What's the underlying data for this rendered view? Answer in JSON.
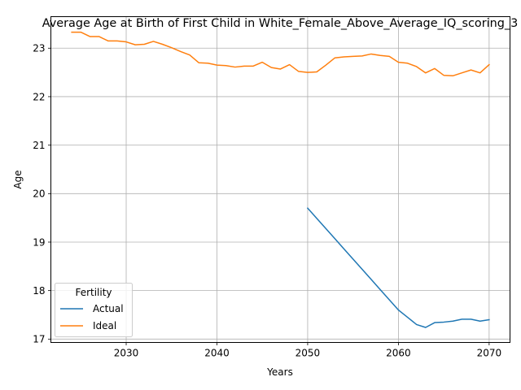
{
  "chart_data": {
    "type": "line",
    "title": "Average Age at Birth of First Child in White_Female_Above_Average_IQ_scoring_3",
    "xlabel": "Years",
    "ylabel": "Age",
    "xlim": [
      2021.7,
      2072.3
    ],
    "ylim": [
      16.93,
      23.65
    ],
    "xticks": [
      2030,
      2040,
      2050,
      2060,
      2070
    ],
    "yticks": [
      17,
      18,
      19,
      20,
      21,
      22,
      23
    ],
    "grid": true,
    "legend": {
      "title": "Fertility",
      "position": "lower-left"
    },
    "series": [
      {
        "name": "Actual",
        "color": "#1f77b4",
        "x": [
          2050,
          2051,
          2052,
          2053,
          2054,
          2055,
          2056,
          2057,
          2058,
          2059,
          2060,
          2061,
          2062,
          2063,
          2064,
          2065,
          2066,
          2067,
          2068,
          2069,
          2070
        ],
        "y": [
          19.7,
          19.49,
          19.28,
          19.07,
          18.86,
          18.65,
          18.44,
          18.23,
          18.02,
          17.81,
          17.6,
          17.45,
          17.3,
          17.24,
          17.34,
          17.35,
          17.37,
          17.41,
          17.41,
          17.37,
          17.4
        ]
      },
      {
        "name": "Ideal",
        "color": "#ff7f0e",
        "x": [
          2024,
          2025,
          2026,
          2027,
          2028,
          2029,
          2030,
          2031,
          2032,
          2033,
          2034,
          2035,
          2036,
          2037,
          2038,
          2039,
          2040,
          2041,
          2042,
          2043,
          2044,
          2045,
          2046,
          2047,
          2048,
          2049,
          2050,
          2051,
          2052,
          2053,
          2054,
          2055,
          2056,
          2057,
          2058,
          2059,
          2060,
          2061,
          2062,
          2063,
          2064,
          2065,
          2066,
          2067,
          2068,
          2069,
          2070
        ],
        "y": [
          23.33,
          23.33,
          23.24,
          23.24,
          23.15,
          23.15,
          23.13,
          23.07,
          23.08,
          23.14,
          23.08,
          23.01,
          22.93,
          22.86,
          22.7,
          22.69,
          22.65,
          22.64,
          22.61,
          22.63,
          22.63,
          22.71,
          22.6,
          22.57,
          22.66,
          22.52,
          22.5,
          22.51,
          22.65,
          22.8,
          22.82,
          22.83,
          22.84,
          22.88,
          22.85,
          22.83,
          22.71,
          22.69,
          22.62,
          22.49,
          22.58,
          22.44,
          22.43,
          22.49,
          22.55,
          22.49,
          22.66
        ]
      }
    ]
  }
}
